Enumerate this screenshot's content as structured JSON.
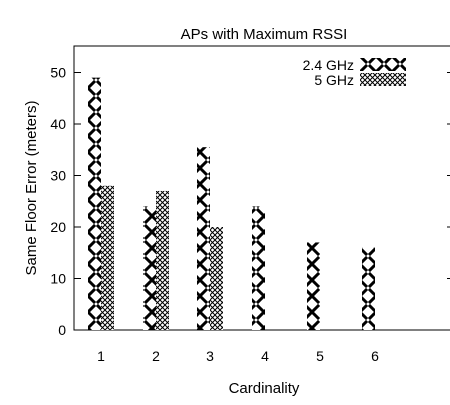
{
  "chart_data": {
    "type": "bar",
    "title": "APs with Maximum RSSI",
    "xlabel": "Cardinality",
    "ylabel": "Same Floor Error (meters)",
    "categories": [
      "1",
      "2",
      "3",
      "4",
      "5",
      "6"
    ],
    "ylim": [
      0,
      55
    ],
    "yticks": [
      0,
      10,
      20,
      30,
      40,
      50
    ],
    "grid": false,
    "legend_position": "top-right",
    "series": [
      {
        "name": "2.4 GHz",
        "values": [
          49,
          24,
          35.5,
          24,
          17,
          16
        ],
        "pattern": "large-cross-hatch",
        "color": "#000000"
      },
      {
        "name": "5 GHz",
        "values": [
          28,
          27,
          20,
          null,
          null,
          null
        ],
        "pattern": "fine-cross-hatch",
        "color": "#000000"
      }
    ]
  }
}
